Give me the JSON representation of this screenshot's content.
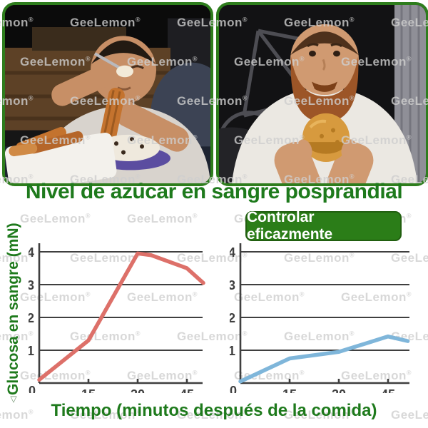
{
  "title": "Nivel de azúcar en sangre posprandial",
  "badge": {
    "label": "Controlar eficazmente",
    "bg": "#2b7d18",
    "text_color": "#ffffff"
  },
  "watermark": {
    "text": "GeeLemon",
    "reg": "®"
  },
  "axis": {
    "ylabel_triangle": "△",
    "ylabel": "Glucosa en sangre (mN)",
    "xlabel": "Tiempo (minutos después de la comida)"
  },
  "colors": {
    "accent_green": "#1e7a1c",
    "badge_green": "#2b7d18",
    "ink": "#3f3f3f",
    "red_line": "#dd7069",
    "blue_line": "#7fb6da",
    "watermark_gray": "#cfcfcf"
  },
  "chart_data": [
    {
      "type": "line",
      "name": "glucosa-sin-control",
      "x": [
        0,
        15,
        30,
        34,
        45,
        50
      ],
      "values": [
        0.1,
        1.3,
        3.95,
        3.9,
        3.5,
        3.05
      ],
      "line_color": "#dd7069",
      "xticks": [
        0,
        15,
        30,
        45
      ],
      "yticks": [
        0,
        1,
        2,
        3,
        4
      ],
      "xlim": [
        0,
        51
      ],
      "ylim": [
        0,
        4
      ],
      "grid": true,
      "ylabel": "△Glucosa en sangre (mN)",
      "xlabel": "Tiempo (minutos después de la comida)"
    },
    {
      "type": "line",
      "name": "glucosa-controlada",
      "x": [
        0,
        15,
        30,
        45,
        51
      ],
      "values": [
        0.05,
        0.75,
        0.95,
        1.42,
        1.28
      ],
      "line_color": "#7fb6da",
      "xticks": [
        0,
        15,
        30,
        45
      ],
      "yticks": [
        0,
        1,
        2,
        3,
        4
      ],
      "xlim": [
        0,
        52
      ],
      "ylim": [
        0,
        4
      ],
      "grid": true,
      "ylabel": "△Glucosa en sangre (mN)",
      "xlabel": "Tiempo (minutos después de la comida)"
    }
  ]
}
